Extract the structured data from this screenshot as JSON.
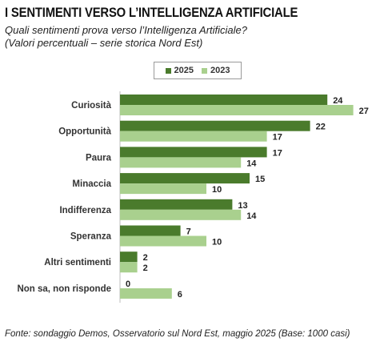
{
  "header": {
    "title": "I SENTIMENTI VERSO L’INTELLIGENZA ARTIFICIALE",
    "subtitle_line1": "Quali sentimenti prova verso l’Intelligenza Artificiale?",
    "subtitle_line2": "(Valori percentuali – serie storica Nord Est)"
  },
  "legend": {
    "items": [
      {
        "label": "2025",
        "color": "#4a7b2c"
      },
      {
        "label": "2023",
        "color": "#a9d08e"
      }
    ]
  },
  "chart_data": {
    "type": "bar",
    "orientation": "horizontal",
    "categories": [
      "Curiosità",
      "Opportunità",
      "Paura",
      "Minaccia",
      "Indifferenza",
      "Speranza",
      "Altri sentimenti",
      "Non sa, non risponde"
    ],
    "series": [
      {
        "name": "2025",
        "color": "#4a7b2c",
        "values": [
          24,
          22,
          17,
          15,
          13,
          7,
          2,
          0
        ]
      },
      {
        "name": "2023",
        "color": "#a9d08e",
        "values": [
          27,
          17,
          14,
          10,
          14,
          10,
          2,
          6
        ]
      }
    ],
    "xlim": [
      0,
      27
    ],
    "grid": false,
    "legend_position": "top-center",
    "data_labels": true
  },
  "footer": {
    "source": "Fonte: sondaggio Demos, Osservatorio sul Nord Est, maggio 2025 (Base: 1000 casi)"
  }
}
